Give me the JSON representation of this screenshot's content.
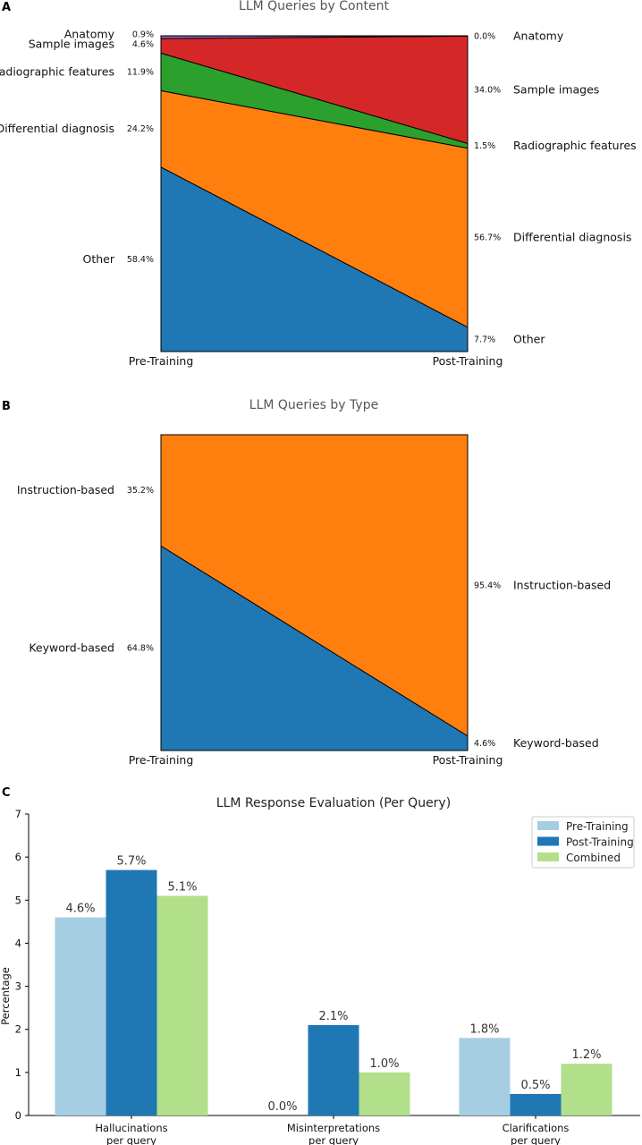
{
  "chart_data": [
    {
      "panel": "A",
      "type": "area",
      "title": "LLM Queries by Content",
      "x": [
        "Pre-Training",
        "Post-Training"
      ],
      "series": [
        {
          "name": "Other",
          "color": "#1f77b4",
          "values": [
            58.4,
            7.7
          ],
          "labels": [
            "58.4%",
            "7.7%"
          ]
        },
        {
          "name": "Differential diagnosis",
          "color": "#ff7f0e",
          "values": [
            24.2,
            56.7
          ],
          "labels": [
            "24.2%",
            "56.7%"
          ]
        },
        {
          "name": "Radiographic features",
          "color": "#2ca02c",
          "values": [
            11.9,
            1.5
          ],
          "labels": [
            "11.9%",
            "1.5%"
          ]
        },
        {
          "name": "Sample images",
          "color": "#d62728",
          "values": [
            4.6,
            34.0
          ],
          "labels": [
            "4.6%",
            "34.0%"
          ]
        },
        {
          "name": "Anatomy",
          "color": "#9467bd",
          "values": [
            0.9,
            0.0
          ],
          "labels": [
            "0.9%",
            "0.0%"
          ]
        }
      ]
    },
    {
      "panel": "B",
      "type": "area",
      "title": "LLM Queries by Type",
      "x": [
        "Pre-Training",
        "Post-Training"
      ],
      "series": [
        {
          "name": "Keyword-based",
          "color": "#1f77b4",
          "values": [
            64.8,
            4.6
          ],
          "labels": [
            "64.8%",
            "4.6%"
          ]
        },
        {
          "name": "Instruction-based",
          "color": "#ff7f0e",
          "values": [
            35.2,
            95.4
          ],
          "labels": [
            "35.2%",
            "95.4%"
          ]
        }
      ]
    },
    {
      "panel": "C",
      "type": "bar",
      "title": "LLM Response Evaluation (Per Query)",
      "ylabel": "Percentage",
      "ylim": [
        0,
        7
      ],
      "yticks": [
        0,
        1,
        2,
        3,
        4,
        5,
        6,
        7
      ],
      "categories": [
        [
          "Hallucinations",
          "per query"
        ],
        [
          "Misinterpretations",
          "per query"
        ],
        [
          "Clarifications",
          "per query"
        ]
      ],
      "series": [
        {
          "name": "Pre-Training",
          "color": "#a6cee3",
          "values": [
            4.6,
            0.0,
            1.8
          ],
          "labels": [
            "4.6%",
            "0.0%",
            "1.8%"
          ]
        },
        {
          "name": "Post-Training",
          "color": "#1f78b4",
          "values": [
            5.7,
            2.1,
            0.5
          ],
          "labels": [
            "5.7%",
            "2.1%",
            "0.5%"
          ]
        },
        {
          "name": "Combined",
          "color": "#b2df8a",
          "values": [
            5.1,
            1.0,
            1.2
          ],
          "labels": [
            "5.1%",
            "1.0%",
            "1.2%"
          ]
        }
      ],
      "legend": "top-right"
    }
  ]
}
